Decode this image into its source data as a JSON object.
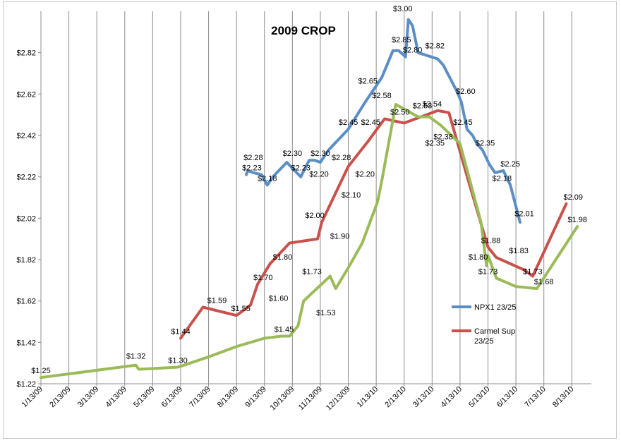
{
  "chart_data": {
    "type": "line",
    "title": "2009 CROP",
    "xlabel": "",
    "ylabel": "",
    "x_ticks": [
      "1/13/09",
      "2/13/09",
      "3/13/09",
      "4/13/09",
      "5/13/09",
      "6/13/09",
      "7/13/09",
      "8/13/09",
      "9/13/09",
      "10/13/09",
      "11/13/09",
      "12/13/09",
      "1/13/10",
      "2/13/10",
      "3/13/10",
      "4/13/10",
      "5/13/10",
      "6/13/10",
      "7/13/10",
      "8/13/10"
    ],
    "y_ticks": [
      "$1.22",
      "$1.42",
      "$1.62",
      "$1.82",
      "$2.02",
      "$2.22",
      "$2.42",
      "$2.62",
      "$2.82"
    ],
    "ylim": [
      1.22,
      3.02
    ],
    "xlim": [
      0,
      19.7
    ],
    "grid": {
      "vertical": true,
      "horizontal": false
    },
    "legend_position": "right",
    "series": [
      {
        "name": "NPX1 23/25",
        "color": "#5b8ec7",
        "x": [
          7.35,
          7.4,
          7.6,
          7.9,
          8.1,
          8.3,
          8.8,
          9.3,
          9.6,
          9.8,
          10.0,
          10.3,
          11.0,
          11.6,
          12.2,
          12.6,
          12.8,
          13.05,
          13.15,
          13.3,
          13.5,
          14.2,
          14.4,
          14.9,
          15.05,
          15.25,
          15.45,
          15.6,
          15.8,
          16.05,
          16.25,
          16.55,
          16.8,
          17.15
        ],
        "values": [
          2.23,
          2.25,
          2.24,
          2.23,
          2.18,
          2.22,
          2.29,
          2.22,
          2.3,
          2.3,
          2.29,
          2.35,
          2.45,
          2.58,
          2.7,
          2.83,
          2.83,
          2.8,
          2.98,
          2.95,
          2.82,
          2.79,
          2.76,
          2.63,
          2.58,
          2.45,
          2.42,
          2.38,
          2.35,
          2.28,
          2.24,
          2.25,
          2.18,
          2.0
        ],
        "labels": [
          {
            "text": "$2.23",
            "x": 7.55,
            "y": 2.23
          },
          {
            "text": "$2.28",
            "x": 7.6,
            "y": 2.28
          },
          {
            "text": "$2.18",
            "x": 8.1,
            "y": 2.18
          },
          {
            "text": "$2.30",
            "x": 9.0,
            "y": 2.3
          },
          {
            "text": "$2.23",
            "x": 9.3,
            "y": 2.23
          },
          {
            "text": "$2.30",
            "x": 10.0,
            "y": 2.3
          },
          {
            "text": "$2.45",
            "x": 11.0,
            "y": 2.45
          },
          {
            "text": "$2.65",
            "x": 11.7,
            "y": 2.65
          },
          {
            "text": "$2.85",
            "x": 12.9,
            "y": 2.85
          },
          {
            "text": "$3.00",
            "x": 12.95,
            "y": 3.0
          },
          {
            "text": "$2.80",
            "x": 13.3,
            "y": 2.8
          },
          {
            "text": "$2.82",
            "x": 14.1,
            "y": 2.82
          },
          {
            "text": "$2.60",
            "x": 15.2,
            "y": 2.6
          },
          {
            "text": "$2.45",
            "x": 15.1,
            "y": 2.45
          },
          {
            "text": "$2.35",
            "x": 15.9,
            "y": 2.35
          },
          {
            "text": "$2.25",
            "x": 16.8,
            "y": 2.25
          },
          {
            "text": "$2.18",
            "x": 16.5,
            "y": 2.18
          },
          {
            "text": "$2.01",
            "x": 17.3,
            "y": 2.01
          }
        ]
      },
      {
        "name": "Carmel Sup 23/25",
        "color": "#c9504b",
        "x": [
          5.0,
          5.8,
          7.0,
          7.5,
          7.75,
          8.2,
          8.9,
          9.9,
          10.05,
          11.0,
          11.7,
          12.3,
          13.0,
          13.8,
          14.2,
          14.6,
          15.3,
          16.0,
          16.3,
          17.3,
          17.6,
          18.8
        ],
        "values": [
          1.44,
          1.59,
          1.55,
          1.6,
          1.7,
          1.8,
          1.9,
          1.92,
          2.0,
          2.27,
          2.39,
          2.5,
          2.48,
          2.52,
          2.54,
          2.53,
          2.2,
          1.88,
          1.83,
          1.77,
          1.74,
          2.09
        ],
        "labels": [
          {
            "text": "$1.44",
            "x": 5.0,
            "y": 1.44
          },
          {
            "text": "$1.59",
            "x": 6.3,
            "y": 1.59
          },
          {
            "text": "$1.55",
            "x": 7.15,
            "y": 1.55
          },
          {
            "text": "$1.60",
            "x": 8.5,
            "y": 1.6
          },
          {
            "text": "$1.70",
            "x": 7.95,
            "y": 1.7
          },
          {
            "text": "$1.80",
            "x": 8.65,
            "y": 1.8
          },
          {
            "text": "$2.00",
            "x": 9.8,
            "y": 2.0
          },
          {
            "text": "$2.20",
            "x": 9.95,
            "y": 2.2
          },
          {
            "text": "$2.28",
            "x": 10.75,
            "y": 2.28
          },
          {
            "text": "$2.45",
            "x": 11.8,
            "y": 2.45
          },
          {
            "text": "$2.53",
            "x": 13.65,
            "y": 2.53
          },
          {
            "text": "$2.54",
            "x": 14.0,
            "y": 2.54
          },
          {
            "text": "$1.88",
            "x": 16.1,
            "y": 1.88
          },
          {
            "text": "$1.83",
            "x": 17.1,
            "y": 1.83
          },
          {
            "text": "$2.09",
            "x": 19.05,
            "y": 2.09
          }
        ]
      },
      {
        "name": "",
        "color": "#9bbb59",
        "x": [
          0.0,
          3.4,
          3.5,
          4.9,
          6.0,
          7.0,
          8.0,
          8.6,
          8.9,
          9.2,
          9.4,
          10.35,
          10.55,
          11.0,
          11.5,
          12.05,
          12.2,
          12.7,
          13.5,
          13.9,
          14.3,
          15.0,
          15.75,
          15.95,
          16.0,
          16.3,
          17.0,
          17.75,
          19.2
        ],
        "values": [
          1.25,
          1.31,
          1.29,
          1.3,
          1.35,
          1.4,
          1.44,
          1.45,
          1.45,
          1.5,
          1.62,
          1.74,
          1.68,
          1.78,
          1.9,
          2.1,
          2.2,
          2.57,
          2.51,
          2.51,
          2.47,
          2.38,
          2.0,
          1.79,
          1.84,
          1.73,
          1.69,
          1.68,
          1.98
        ],
        "labels": [
          {
            "text": "$1.25",
            "x": 0.0,
            "y": 1.25
          },
          {
            "text": "$1.32",
            "x": 3.4,
            "y": 1.32
          },
          {
            "text": "$1.30",
            "x": 4.9,
            "y": 1.3
          },
          {
            "text": "$1.45",
            "x": 8.7,
            "y": 1.45
          },
          {
            "text": "$1.73",
            "x": 9.7,
            "y": 1.73
          },
          {
            "text": "$1.53",
            "x": 10.2,
            "y": 1.53
          },
          {
            "text": "$1.90",
            "x": 10.7,
            "y": 1.9
          },
          {
            "text": "$2.10",
            "x": 11.1,
            "y": 2.1
          },
          {
            "text": "$2.20",
            "x": 11.6,
            "y": 2.2
          },
          {
            "text": "$2.58",
            "x": 12.2,
            "y": 2.58
          },
          {
            "text": "$2.50",
            "x": 12.85,
            "y": 2.5
          },
          {
            "text": "$2.35",
            "x": 14.1,
            "y": 2.35
          },
          {
            "text": "$2.38",
            "x": 14.4,
            "y": 2.38
          },
          {
            "text": "$1.80",
            "x": 15.65,
            "y": 1.8
          },
          {
            "text": "$1.73",
            "x": 16.0,
            "y": 1.73
          },
          {
            "text": "$1.68",
            "x": 18.0,
            "y": 1.68
          },
          {
            "text": "$1.73",
            "x": 17.6,
            "y": 1.73
          },
          {
            "text": "$1.98",
            "x": 19.2,
            "y": 1.98
          }
        ]
      }
    ],
    "legend": [
      {
        "label": "NPX1 23/25",
        "color": "#5b8ec7"
      },
      {
        "label": "Carmel Sup",
        "label_line2": "23/25",
        "color": "#c9504b"
      }
    ]
  }
}
